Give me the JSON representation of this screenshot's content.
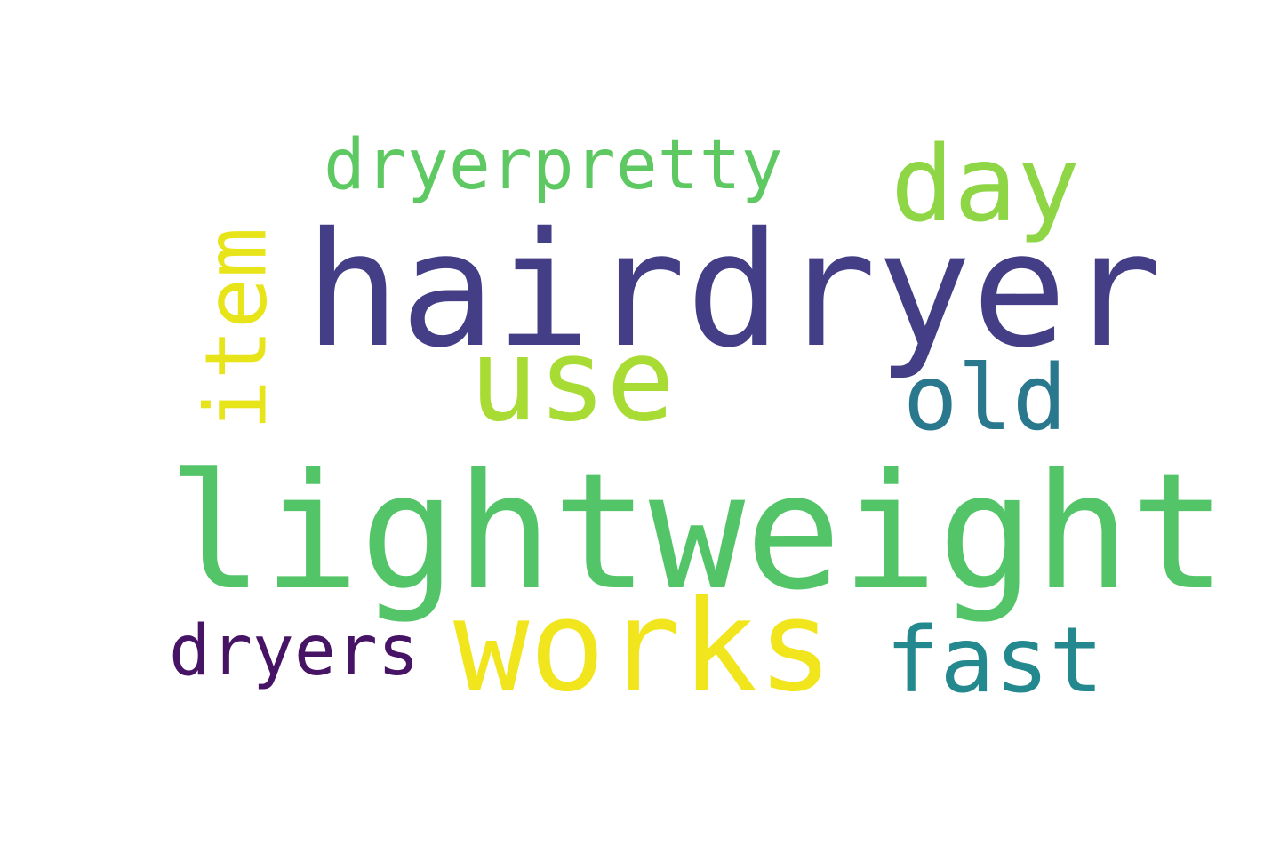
{
  "word_cloud": {
    "background": "#ffffff",
    "words": [
      {
        "id": "hairdryer",
        "text": "hairdryer",
        "color": "#433e85",
        "orientation": "horizontal"
      },
      {
        "id": "lightweight",
        "text": "lightweight",
        "color": "#53c568",
        "orientation": "horizontal"
      },
      {
        "id": "works",
        "text": "works",
        "color": "#f1e51d",
        "orientation": "horizontal"
      },
      {
        "id": "use",
        "text": "use",
        "color": "#a8db34",
        "orientation": "horizontal"
      },
      {
        "id": "day",
        "text": "day",
        "color": "#8ed645",
        "orientation": "horizontal"
      },
      {
        "id": "old",
        "text": "old",
        "color": "#2a788e",
        "orientation": "horizontal"
      },
      {
        "id": "fast",
        "text": "fast",
        "color": "#23898e",
        "orientation": "horizontal"
      },
      {
        "id": "dryerpretty",
        "text": "dryerpretty",
        "color": "#5ec962",
        "orientation": "horizontal"
      },
      {
        "id": "dryers",
        "text": "dryers",
        "color": "#471365",
        "orientation": "horizontal"
      },
      {
        "id": "item",
        "text": "item",
        "color": "#e7e419",
        "orientation": "vertical"
      }
    ]
  }
}
